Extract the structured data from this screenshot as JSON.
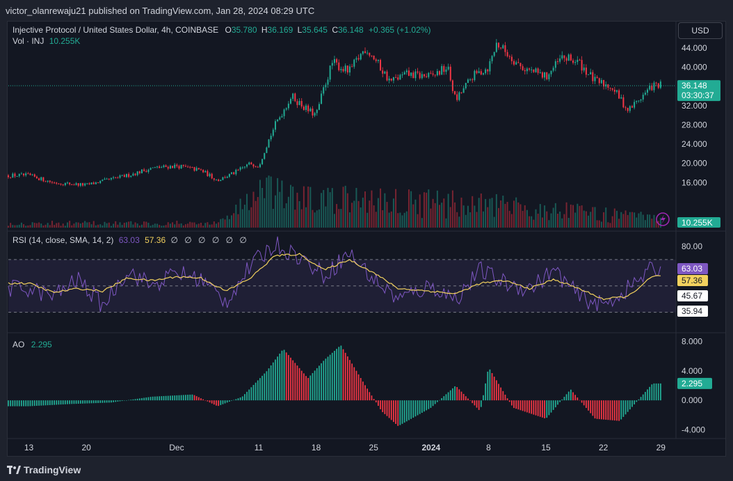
{
  "header": {
    "publish_line": "victor_olanrewaju21 published on TradingView.com, Jan 28, 2024 08:29 UTC",
    "currency_button": "USD"
  },
  "main_legend": {
    "symbol": "Injective Protocol / United States Dollar, 4h, COINBASE",
    "o_label": "O",
    "o_value": "35.780",
    "h_label": "H",
    "h_value": "36.169",
    "l_label": "L",
    "l_value": "35.645",
    "c_label": "C",
    "c_value": "36.148",
    "change": "+0.365 (+1.02%)",
    "vol_label": "Vol · INJ",
    "vol_value": "10.255K"
  },
  "rsi_legend": {
    "label": "RSI (14, close, SMA, 14, 2)",
    "rsi_value": "63.03",
    "sma_value": "57.36",
    "empty_slots": "∅ ∅ ∅ ∅ ∅ ∅"
  },
  "ao_legend": {
    "label": "AO",
    "value": "2.295"
  },
  "footer": {
    "brand": "TradingView"
  },
  "colors": {
    "up": "#22ab94",
    "down": "#f23645",
    "rsi": "#7e57c2",
    "rsi_sma": "#f2d15e",
    "bg": "#131722"
  },
  "chart_data": [
    {
      "type": "candlestick",
      "title": "Injective Protocol / United States Dollar, 4h, COINBASE",
      "ylim": [
        12,
        46
      ],
      "yticks": [
        "44.000",
        "40.000",
        "36.000",
        "32.000",
        "28.000",
        "24.000",
        "20.000",
        "16.000"
      ],
      "last_price": "36.148",
      "countdown": "03:30:37",
      "volume_last": "10.255K",
      "x_date_labels": [
        "13",
        "20",
        "Dec",
        "11",
        "18",
        "25",
        "2024",
        "8",
        "15",
        "22",
        "29"
      ],
      "x_dates": [
        "2023-11-13",
        "2023-11-20",
        "2023-12-01",
        "2023-12-11",
        "2023-12-18",
        "2023-12-25",
        "2024-01-01",
        "2024-01-08",
        "2024-01-15",
        "2024-01-22",
        "2024-01-29"
      ],
      "price_anchors": {
        "x": [
          "2023-11-13",
          "2023-11-16",
          "2023-11-20",
          "2023-11-25",
          "2023-11-28",
          "2023-12-01",
          "2023-12-04",
          "2023-12-06",
          "2023-12-08",
          "2023-12-10",
          "2023-12-11",
          "2023-12-12",
          "2023-12-13",
          "2023-12-15",
          "2023-12-17",
          "2023-12-18",
          "2023-12-19",
          "2023-12-20",
          "2023-12-22",
          "2023-12-24",
          "2023-12-25",
          "2023-12-27",
          "2023-12-29",
          "2024-01-01",
          "2024-01-03",
          "2024-01-04",
          "2024-01-06",
          "2024-01-08",
          "2024-01-09",
          "2024-01-12",
          "2024-01-15",
          "2024-01-17",
          "2024-01-19",
          "2024-01-21",
          "2024-01-23",
          "2024-01-25",
          "2024-01-28"
        ],
        "y": [
          17.5,
          16.0,
          15.5,
          17.5,
          19.0,
          19.5,
          18.5,
          16.5,
          18.0,
          20.0,
          19.5,
          24.0,
          28.0,
          34.0,
          31.0,
          30.0,
          36.0,
          41.0,
          39.0,
          44.0,
          42.0,
          37.0,
          38.5,
          38.0,
          40.0,
          33.0,
          38.0,
          40.0,
          45.0,
          40.0,
          38.0,
          42.0,
          41.0,
          37.0,
          36.0,
          31.0,
          36.148
        ]
      },
      "volume_anchors": {
        "x": [
          "2023-11-13",
          "2023-12-06",
          "2023-12-11",
          "2023-12-18",
          "2023-12-25",
          "2024-01-08",
          "2024-01-22",
          "2024-01-28"
        ],
        "y_k": [
          5,
          5,
          40,
          30,
          32,
          25,
          15,
          10.255
        ]
      }
    },
    {
      "type": "line",
      "title": "RSI (14, close, SMA, 14, 2)",
      "ylim": [
        15,
        90
      ],
      "yticks": [
        "80.00"
      ],
      "bands": {
        "upper": 70,
        "middle": 50,
        "lower": 30
      },
      "series": [
        {
          "name": "RSI",
          "x": [
            "2023-11-13",
            "2023-11-16",
            "2023-11-19",
            "2023-11-22",
            "2023-11-25",
            "2023-11-28",
            "2023-12-01",
            "2023-12-04",
            "2023-12-07",
            "2023-12-10",
            "2023-12-13",
            "2023-12-16",
            "2023-12-19",
            "2023-12-22",
            "2023-12-25",
            "2023-12-28",
            "2024-01-01",
            "2024-01-04",
            "2024-01-07",
            "2024-01-10",
            "2024-01-13",
            "2024-01-16",
            "2024-01-19",
            "2024-01-22",
            "2024-01-25",
            "2024-01-28"
          ],
          "values": [
            48,
            42,
            55,
            35,
            62,
            50,
            60,
            55,
            38,
            65,
            82,
            72,
            58,
            75,
            55,
            40,
            50,
            40,
            62,
            52,
            48,
            62,
            42,
            35,
            48,
            63.03
          ]
        },
        {
          "name": "RSI-based MA",
          "x": [
            "2023-11-13",
            "2023-11-16",
            "2023-11-19",
            "2023-11-22",
            "2023-11-25",
            "2023-11-28",
            "2023-12-01",
            "2023-12-04",
            "2023-12-07",
            "2023-12-10",
            "2023-12-13",
            "2023-12-16",
            "2023-12-19",
            "2023-12-22",
            "2023-12-25",
            "2023-12-28",
            "2024-01-01",
            "2024-01-04",
            "2024-01-07",
            "2024-01-10",
            "2024-01-13",
            "2024-01-16",
            "2024-01-19",
            "2024-01-22",
            "2024-01-25",
            "2024-01-28"
          ],
          "values": [
            52,
            45,
            48,
            46,
            56,
            54,
            57,
            56,
            46,
            56,
            73,
            74,
            62,
            70,
            60,
            48,
            46,
            44,
            52,
            54,
            48,
            55,
            48,
            40,
            42,
            57.36
          ]
        }
      ],
      "labels": [
        "63.03",
        "57.36",
        "45.67",
        "35.94"
      ]
    },
    {
      "type": "bar",
      "title": "AO",
      "ylim": [
        -5,
        9
      ],
      "yticks": [
        "8.000",
        "4.000",
        "0.000",
        "-4.000"
      ],
      "last_value": "2.295",
      "series": [
        {
          "name": "AO",
          "x": [
            "2023-11-13",
            "2023-11-18",
            "2023-11-23",
            "2023-11-28",
            "2023-12-03",
            "2023-12-06",
            "2023-12-09",
            "2023-12-12",
            "2023-12-14",
            "2023-12-17",
            "2023-12-19",
            "2023-12-21",
            "2023-12-24",
            "2023-12-26",
            "2023-12-28",
            "2024-01-01",
            "2024-01-04",
            "2024-01-07",
            "2024-01-08",
            "2024-01-11",
            "2024-01-15",
            "2024-01-18",
            "2024-01-21",
            "2024-01-24",
            "2024-01-28"
          ],
          "values": [
            -0.8,
            -0.5,
            -0.3,
            0.5,
            0.8,
            -0.8,
            0.5,
            4.0,
            7.0,
            3.0,
            5.5,
            7.5,
            2.0,
            -1.5,
            -3.5,
            -1.0,
            2.0,
            -1.5,
            4.5,
            -1.0,
            -2.5,
            1.5,
            -2.5,
            -2.8,
            2.295
          ]
        }
      ]
    }
  ]
}
